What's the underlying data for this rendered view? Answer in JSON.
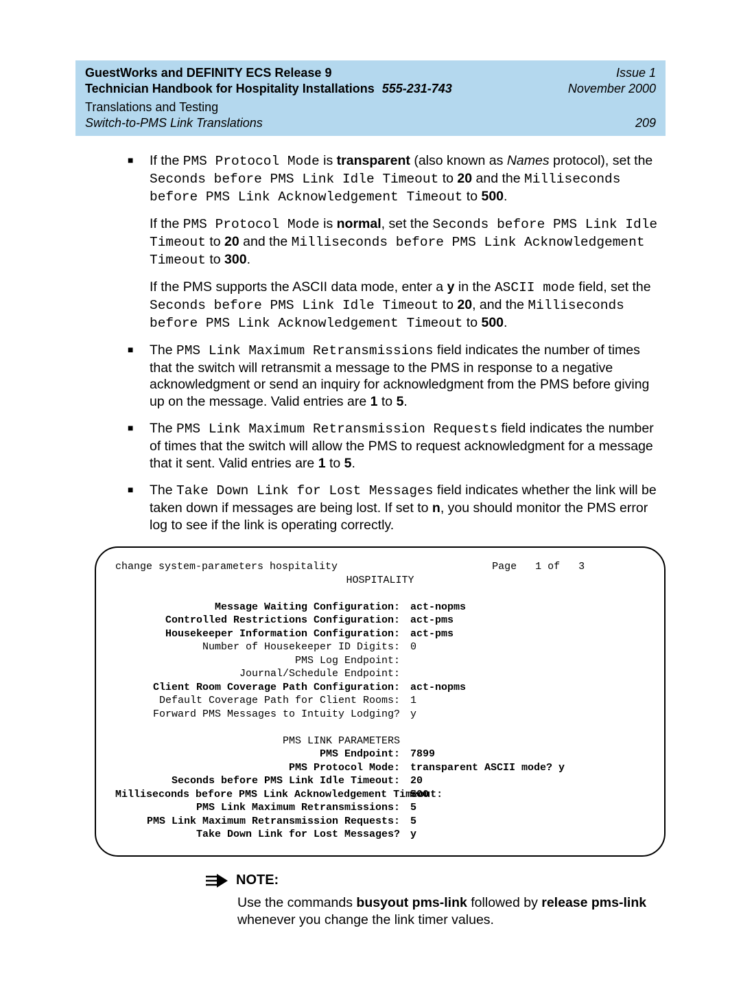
{
  "header": {
    "title_left": "GuestWorks and DEFINITY ECS Release 9",
    "issue": "Issue 1",
    "subtitle_left": "Technician Handbook for Hospitality Installations",
    "docnum": "555-231-743",
    "date": "November 2000",
    "chapter": "Translations and Testing",
    "section": "Switch-to-PMS Link Translations",
    "page": "209"
  },
  "bullets": {
    "b1": {
      "p1_a": "If the ",
      "p1_mono1": "PMS Protocol Mode",
      "p1_b": " is ",
      "p1_bold1": "transparent",
      "p1_c": " (also known as ",
      "p1_ital1": "Names",
      "p1_d": " protocol), set the ",
      "p1_mono2": "Seconds before PMS Link Idle Timeout",
      "p1_e": " to ",
      "p1_bold2": "20",
      "p1_f": " and the ",
      "p1_mono3": "Milliseconds before PMS Link Acknowledgement Timeout",
      "p1_g": " to ",
      "p1_bold3": "500",
      "p1_h": ".",
      "p2_a": "If the ",
      "p2_mono1": "PMS Protocol Mode",
      "p2_b": " is ",
      "p2_bold1": "normal",
      "p2_c": ", set the ",
      "p2_mono2": "Seconds before PMS Link Idle Timeout",
      "p2_d": " to ",
      "p2_bold2": "20",
      "p2_e": " and the ",
      "p2_mono3": "Milliseconds before PMS Link Acknowledgement Timeout",
      "p2_f": " to ",
      "p2_bold3": "300",
      "p2_g": ".",
      "p3_a": "If the PMS supports the ASCII data mode, enter a ",
      "p3_bold1": "y",
      "p3_b": " in the ",
      "p3_mono1": "ASCII mode",
      "p3_c": " field, set the ",
      "p3_mono2": "Seconds before PMS Link Idle Timeout",
      "p3_d": " to ",
      "p3_bold2": "20",
      "p3_e": ", and the ",
      "p3_mono3": "Milliseconds before PMS Link Acknowledgement Timeout",
      "p3_f": " to ",
      "p3_bold3": "500",
      "p3_g": "."
    },
    "b2": {
      "a": "The ",
      "mono1": "PMS Link Maximum Retransmissions",
      "b": " field indicates the number of times that the switch will retransmit a message to the PMS in response to a negative acknowledgment or send an inquiry for acknowledgment from the PMS before giving up on the message. Valid entries are ",
      "bold1": "1",
      "c": " to ",
      "bold2": "5",
      "d": "."
    },
    "b3": {
      "a": "The ",
      "mono1": "PMS Link Maximum Retransmission Requests",
      "b": " field indicates the number of times that the switch will allow the PMS to request acknowledgment for a message that it sent. Valid entries are ",
      "bold1": "1",
      "c": " to ",
      "bold2": "5",
      "d": "."
    },
    "b4": {
      "a": "The ",
      "mono1": "Take Down Link for Lost Messages",
      "b": " field indicates whether the link will be taken down if messages are being lost. If set to ",
      "bold1": "n",
      "c": ", you should monitor the PMS error log to see if the link is operating correctly."
    }
  },
  "terminal": {
    "cmd": "change system-parameters hospitality                         Page   1 of   3",
    "title": "HOSPITALITY",
    "lines": [
      {
        "label": "Message Waiting Configuration:",
        "value": "act-nopms",
        "bold": true
      },
      {
        "label": "Controlled Restrictions Configuration:",
        "value": "act-pms",
        "bold": true
      },
      {
        "label": "Housekeeper Information Configuration:",
        "value": "act-pms",
        "bold": true
      },
      {
        "label": "Number of Housekeeper ID Digits:",
        "value": "0",
        "bold": false
      },
      {
        "label": "PMS Log Endpoint:",
        "value": "",
        "bold": false
      },
      {
        "label": "Journal/Schedule Endpoint:",
        "value": "",
        "bold": false
      },
      {
        "label": "Client Room Coverage Path Configuration:",
        "value": "act-nopms",
        "bold": true
      },
      {
        "label": "Default Coverage Path for Client Rooms:",
        "value": "1",
        "bold": false
      },
      {
        "label": "Forward PMS Messages to Intuity Lodging?",
        "value": "y",
        "bold": false
      }
    ],
    "section2": "PMS LINK PARAMETERS",
    "lines2": [
      {
        "label": "PMS Endpoint:",
        "value": "7899",
        "bold": true,
        "extra": ""
      },
      {
        "label": "PMS Protocol Mode:",
        "value": "transparent ASCII mode? y",
        "bold": true,
        "extra": ""
      },
      {
        "label": "Seconds before PMS Link Idle Timeout:",
        "value": "20",
        "bold": true,
        "extra": ""
      },
      {
        "label": "Milliseconds before PMS Link Acknowledgement Timeout:",
        "value": "500",
        "bold": true,
        "extra": ""
      },
      {
        "label": "PMS Link Maximum Retransmissions:",
        "value": "5",
        "bold": true,
        "extra": ""
      },
      {
        "label": "PMS Link Maximum Retransmission Requests:",
        "value": "5",
        "bold": true,
        "extra": ""
      },
      {
        "label": "Take Down Link for Lost Messages?",
        "value": "y",
        "bold": true,
        "extra": ""
      }
    ]
  },
  "note": {
    "label": "NOTE:",
    "a": "Use the commands ",
    "bold1": "busyout pms-link",
    "b": " followed by ",
    "bold2": "release pms-link",
    "c": " whenever you change the link timer values."
  }
}
